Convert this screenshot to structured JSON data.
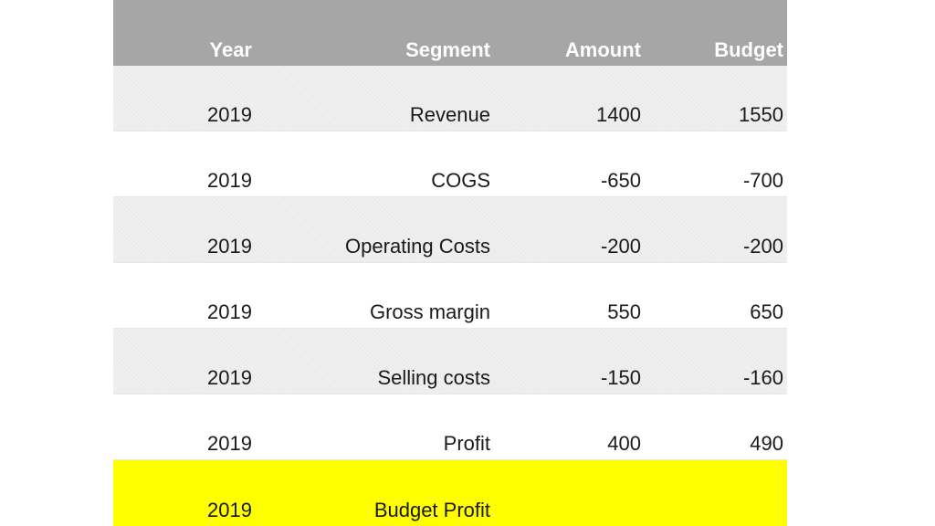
{
  "table": {
    "headers": [
      "Year",
      "Segment",
      "Amount",
      "Budget"
    ],
    "rows": [
      [
        "2019",
        "Revenue",
        "1400",
        "1550"
      ],
      [
        "2019",
        "COGS",
        "-650",
        "-700"
      ],
      [
        "2019",
        "Operating Costs",
        "-200",
        "-200"
      ],
      [
        "2019",
        "Gross margin",
        "550",
        "650"
      ],
      [
        "2019",
        "Selling costs",
        "-150",
        "-160"
      ],
      [
        "2019",
        "Profit",
        "400",
        "490"
      ],
      [
        "2019",
        "Budget Profit",
        "",
        ""
      ]
    ]
  },
  "colors": {
    "header_bg": "#a6a6a6",
    "header_text": "#ffffff",
    "band_shaded": "#ebebeb",
    "highlight": "#ffff00"
  }
}
